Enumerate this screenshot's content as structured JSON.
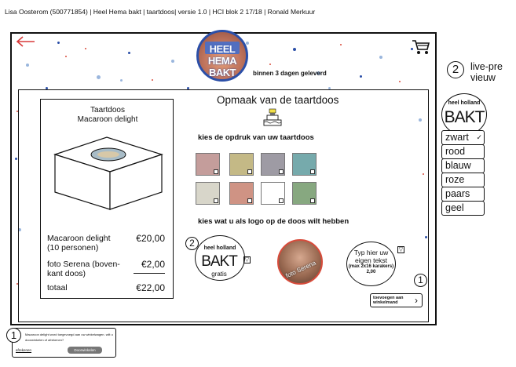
{
  "header": {
    "line": "Lisa Oosterom (500771854) | Heel Hema bakt | taartdoos| versie 1.0 | HCI blok 2 17/18 | Ronald Merkuur"
  },
  "logo": {
    "text": "HEEL HEMA BAKT"
  },
  "delivery": "binnen 3 dagen geleverd",
  "product": {
    "title_line1": "Taartdoos",
    "title_line2": "Macaroon delight",
    "rows": [
      {
        "label": "Macaroon delight\n(10 personen)",
        "price": "€20,00"
      },
      {
        "label": "foto Serena (boven-\nkant doos)",
        "price": "€2,00"
      },
      {
        "label": "totaal",
        "price": "€22,00"
      }
    ]
  },
  "main": {
    "title": "Opmaak van de taartdoos",
    "print_label": "kies de opdruk van uw taartdoos",
    "logo_label": "kies wat u als logo op de doos wilt hebben"
  },
  "swatches": [
    "#c49d9b",
    "#c4b986",
    "#9e9ba4",
    "#76aaac",
    "#d8d6ca",
    "#cf9384",
    "#ffffff",
    "#87a880"
  ],
  "logo_options": {
    "opt1_top": "heel holland",
    "opt1_big": "BAKT",
    "opt1_sub": "gratis",
    "opt2_label": "foto Serena",
    "opt3_text": "Typ hier uw eigen tekst",
    "opt3_note": "(max 2x16 karakers)\n2,00"
  },
  "badges": {
    "opt1": "2",
    "add": "1",
    "preview": "2",
    "footer": "1"
  },
  "add_button": "toevoegen aan winkelmand",
  "preview": {
    "label": "live-pre\nvieuw",
    "top": "heel holland",
    "big": "BAKT",
    "colors": [
      "zwart",
      "rood",
      "blauw",
      "roze",
      "paars",
      "geel"
    ]
  },
  "footer": {
    "text": "Macaroon delight word toegevoegd aan uw winkelwagen. wilt u doorwinkelen of afrekenen?",
    "link": "afrekenen",
    "button": "Doorwinkelen"
  }
}
